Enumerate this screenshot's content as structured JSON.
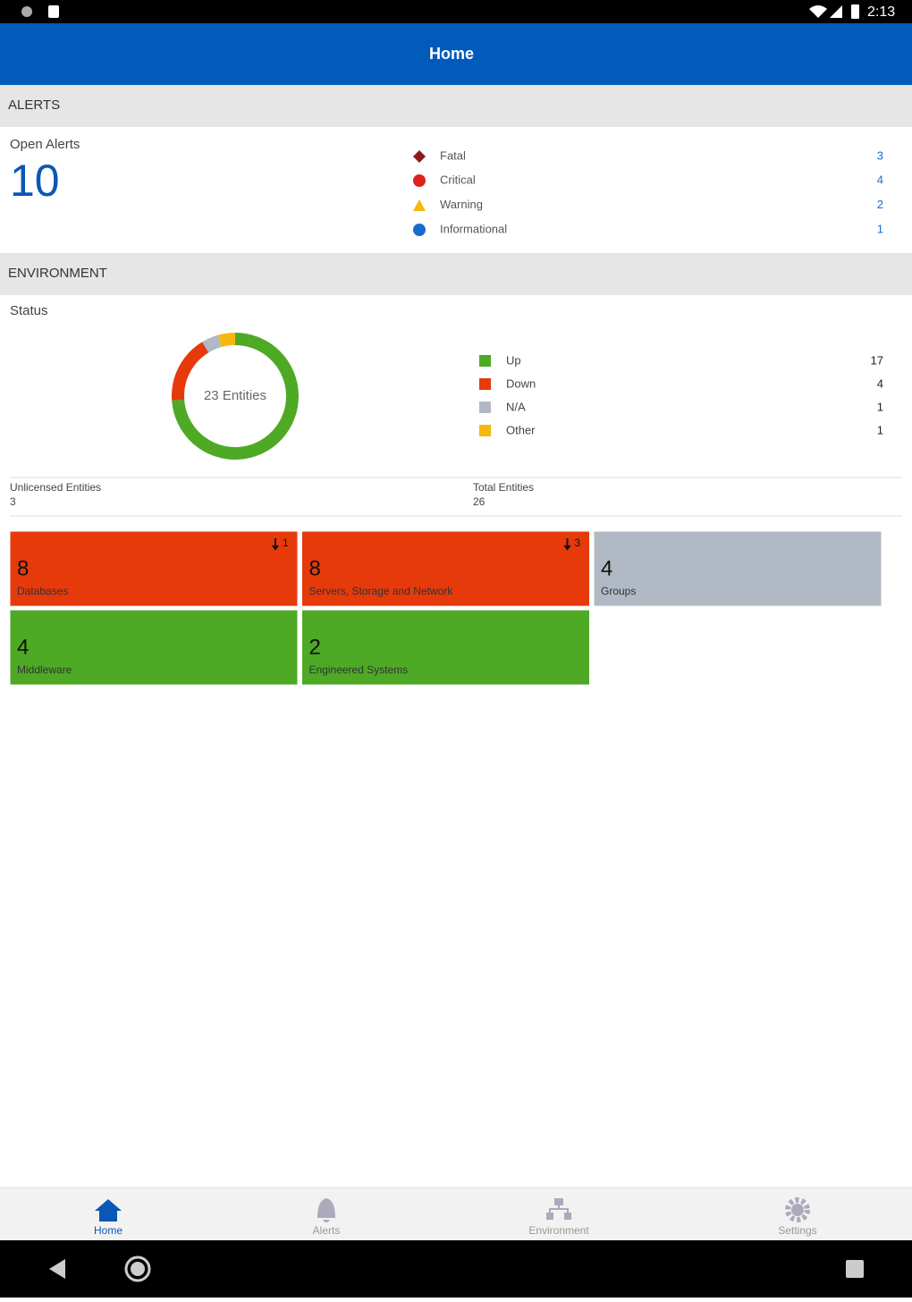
{
  "status_bar": {
    "time": "2:13"
  },
  "header": {
    "title": "Home"
  },
  "alerts": {
    "section": "ALERTS",
    "label": "Open Alerts",
    "total": 10,
    "items": [
      {
        "name": "Fatal",
        "count": 3
      },
      {
        "name": "Critical",
        "count": 4
      },
      {
        "name": "Warning",
        "count": 2
      },
      {
        "name": "Informational",
        "count": 1
      }
    ]
  },
  "environment": {
    "section": "ENVIRONMENT",
    "label": "Status",
    "donut_label": "23 Entities",
    "status": [
      {
        "name": "Up",
        "count": 17,
        "color": "#4ea925"
      },
      {
        "name": "Down",
        "count": 4,
        "color": "#e63a0b"
      },
      {
        "name": "N/A",
        "count": 1,
        "color": "#b1b9c4"
      },
      {
        "name": "Other",
        "count": 1,
        "color": "#f6b80e"
      }
    ],
    "unlicensed": {
      "label": "Unlicensed Entities",
      "value": 3
    },
    "total": {
      "label": "Total Entities",
      "value": 26
    },
    "tiles": [
      {
        "count": 8,
        "label": "Databases",
        "down": 1,
        "color": "#e63a0b"
      },
      {
        "count": 8,
        "label": "Servers, Storage and Network",
        "down": 3,
        "color": "#e63a0b"
      },
      {
        "count": 4,
        "label": "Groups",
        "color": "#b1b9c4"
      },
      {
        "count": 4,
        "label": "Middleware",
        "color": "#4ea925"
      },
      {
        "count": 2,
        "label": "Engineered Systems",
        "color": "#4ea925"
      }
    ]
  },
  "nav": [
    {
      "label": "Home"
    },
    {
      "label": "Alerts"
    },
    {
      "label": "Environment"
    },
    {
      "label": "Settings"
    }
  ]
}
